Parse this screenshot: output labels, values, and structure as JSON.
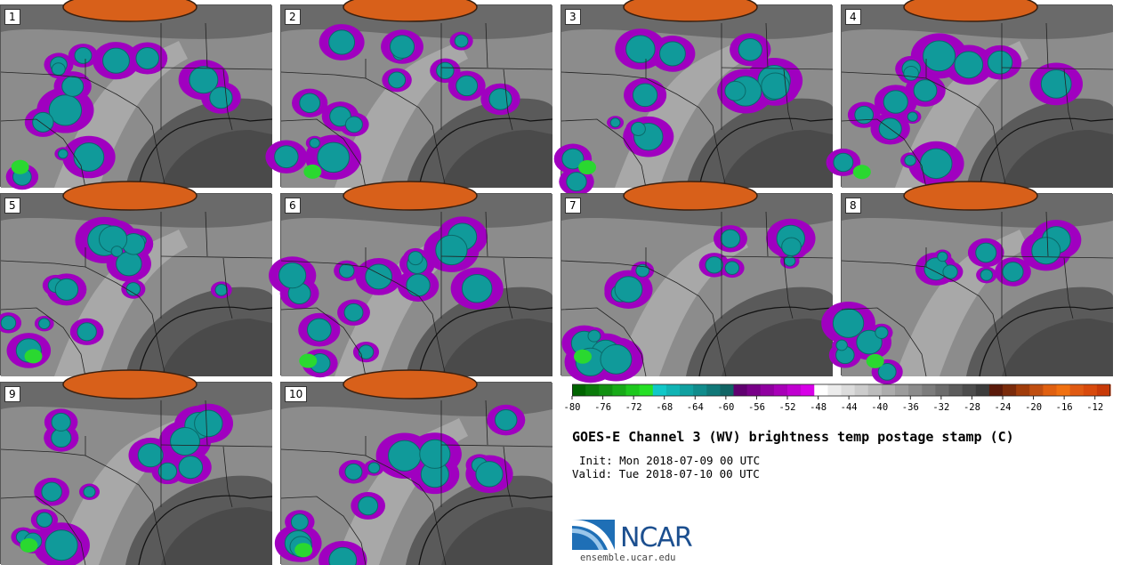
{
  "panels": [
    {
      "label": "1"
    },
    {
      "label": "2"
    },
    {
      "label": "3"
    },
    {
      "label": "4"
    },
    {
      "label": "5"
    },
    {
      "label": "6"
    },
    {
      "label": "7"
    },
    {
      "label": "8"
    },
    {
      "label": "9"
    },
    {
      "label": "10"
    }
  ],
  "colors": {
    "background_gray": "#8c8c8c",
    "warm_orange": "#d8601a",
    "magenta": "#a000c0",
    "teal": "#109a9a",
    "green": "#2ad830",
    "boundary": "#222222"
  },
  "chart_data": {
    "type": "heatmap",
    "title": "GOES-E Channel 3 (WV) brightness temp postage stamp (C)",
    "init": "Init: Mon 2018-07-09 00 UTC",
    "valid": "Valid: Tue 2018-07-10 00 UTC",
    "colorbar": {
      "vmin": -80,
      "vmax": -10,
      "step": 2,
      "tick_labels": [
        "-80",
        "-76",
        "-72",
        "-68",
        "-64",
        "-60",
        "-56",
        "-52",
        "-48",
        "-44",
        "-40",
        "-36",
        "-32",
        "-28",
        "-24",
        "-20",
        "-16",
        "-12"
      ],
      "tick_values": [
        -80,
        -76,
        -72,
        -68,
        -64,
        -60,
        -56,
        -52,
        -48,
        -44,
        -40,
        -36,
        -32,
        -28,
        -24,
        -20,
        -16,
        -12
      ],
      "colors": [
        "#006400",
        "#0a7a0a",
        "#129012",
        "#18aa18",
        "#1ec81e",
        "#26e026",
        "#10c8c8",
        "#10b4b4",
        "#10a0a0",
        "#108c8c",
        "#107878",
        "#106464",
        "#600070",
        "#780088",
        "#9000a0",
        "#a800b8",
        "#c000d0",
        "#d800e8",
        "#ffffff",
        "#ececec",
        "#dcdcdc",
        "#cccccc",
        "#bcbcbc",
        "#acacac",
        "#9c9c9c",
        "#8c8c8c",
        "#7c7c7c",
        "#6c6c6c",
        "#5c5c5c",
        "#4c4c4c",
        "#3c3c3c",
        "#5a1a0a",
        "#7a2a0a",
        "#a03c0a",
        "#c04e10",
        "#e06010",
        "#f07010",
        "#e05a12",
        "#d84a0c",
        "#c83a08"
      ]
    }
  },
  "logo": {
    "text": "NCAR",
    "url": "ensemble.ucar.edu"
  }
}
